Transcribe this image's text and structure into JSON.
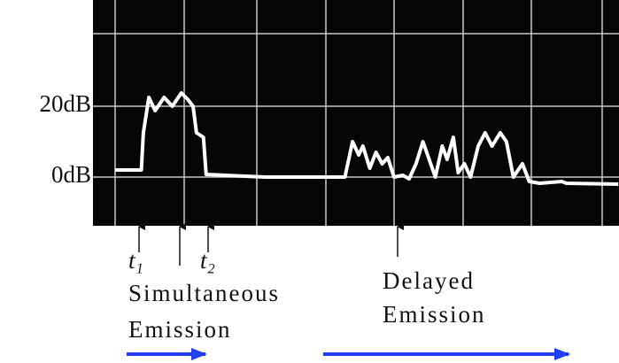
{
  "chart_data": {
    "type": "line",
    "x": [
      0,
      0.38,
      0.41,
      0.49,
      0.58,
      0.71,
      0.83,
      0.96,
      1.05,
      1.13,
      1.18,
      1.28,
      1.32,
      2.18,
      3.33,
      3.44,
      3.53,
      3.59,
      3.69,
      3.78,
      3.87,
      3.95,
      4.04,
      4.17,
      4.26,
      4.36,
      4.46,
      4.55,
      4.64,
      4.74,
      4.81,
      4.9,
      4.97,
      5.06,
      5.15,
      5.26,
      5.36,
      5.46,
      5.58,
      5.67,
      5.77,
      5.9,
      6.0,
      6.15,
      6.47,
      6.54,
      7.29
    ],
    "series": [
      {
        "color": "#ffffff",
        "values": [
          2,
          2,
          12.5,
          22.5,
          18.75,
          22.5,
          20,
          23.75,
          22,
          20,
          12.5,
          11.25,
          0.75,
          0,
          0,
          10,
          6.25,
          8.75,
          2.5,
          7,
          3.75,
          5.5,
          0,
          0.5,
          -0.5,
          3.75,
          10,
          5,
          0,
          8.75,
          5,
          11.25,
          1.25,
          3.75,
          0,
          8.75,
          12.5,
          8.75,
          12.5,
          10,
          0,
          3.75,
          -1.25,
          -1.75,
          -1.25,
          -1.75,
          -2
        ]
      }
    ],
    "xlim": [
      -0.32,
      7.3
    ],
    "ylim": [
      -13.75,
      50
    ],
    "yticks": [
      {
        "value": 0,
        "label": "0dB"
      },
      {
        "value": 20,
        "label": "20dB"
      }
    ],
    "grid": true,
    "annotations": [
      "t₁",
      "t₂",
      "Simultaneous",
      "Emission",
      "Delayed",
      "Emission"
    ]
  }
}
